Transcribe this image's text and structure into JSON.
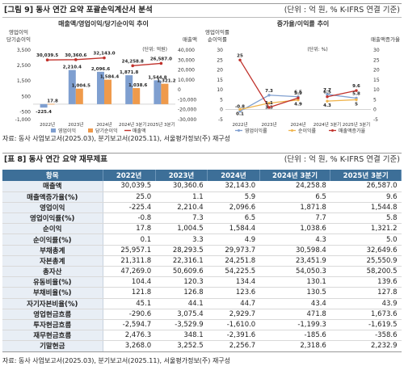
{
  "figure": {
    "title": "[그림 9] 동사 연간 요약 포괄손익계산서 분석",
    "unit": "(단위 : 억 원, % K-IFRS 연결 기준)"
  },
  "chart_data": [
    {
      "type": "bar",
      "title": "매출액/영업이익/당기순이익 추이",
      "categories": [
        "2022년",
        "2023년",
        "2024년",
        "2024년 3분기",
        "2025년 3분기"
      ],
      "series": [
        {
          "name": "영업이익",
          "values": [
            -225.4,
            2210.4,
            2096.6,
            1871.8,
            1544.8
          ],
          "color": "#7f9fd0"
        },
        {
          "name": "당기순이익",
          "values": [
            17.8,
            1004.5,
            1584.4,
            1038.6,
            1321.2
          ],
          "color": "#ef9a4b"
        },
        {
          "name": "매출액",
          "values": [
            30039.5,
            30360.6,
            32143.0,
            24258.8,
            26587.0
          ],
          "color": "#c0312b"
        }
      ],
      "data_labels": {
        "operating": [
          "-225.4",
          "2,210.4",
          "2,096.6",
          "1,871.8",
          "1,544.8"
        ],
        "net": [
          "17.8",
          "1,004.5",
          "1,584.4",
          "1,038.6",
          "1,321.2"
        ],
        "revenue": [
          "30,039.5",
          "30,360.6",
          "32,143.0",
          "24,258.8",
          "26,587.0"
        ]
      },
      "left_axis_title": "영업이익\n당기순이익",
      "right_axis_title": "매출액",
      "unit_label": "(단위: 억원)",
      "left_ylim": [
        -1000,
        3500
      ],
      "left_ticks": [
        "3,500",
        "2,500",
        "1,500",
        "500",
        "-500",
        "-1,000"
      ],
      "right_ylim": [
        -30000,
        40000
      ],
      "right_ticks": [
        "40,000",
        "30,000",
        "20,000",
        "10,000",
        "0",
        "-10,000",
        "-20,000",
        "-30,000"
      ]
    },
    {
      "type": "line",
      "title": "증가율/이익률 추이",
      "categories": [
        "2022년",
        "2023년",
        "2024년",
        "2024년 3분기",
        "2025년 3분기"
      ],
      "series": [
        {
          "name": "영업이익률",
          "values": [
            -0.8,
            7.3,
            6.5,
            7.7,
            5.8
          ],
          "color": "#7f9fd0"
        },
        {
          "name": "순이익률",
          "values": [
            0.1,
            3.3,
            4.9,
            4.3,
            5.0
          ],
          "color": "#f0b44c"
        },
        {
          "name": "매출액증가율",
          "values": [
            25.0,
            1.1,
            5.9,
            6.5,
            9.6
          ],
          "color": "#c0312b"
        }
      ],
      "left_axis_title": "영업이익률\n순이익률",
      "right_axis_title": "매출액증가율",
      "unit_label": "(단위: %)",
      "left_ylim": [
        -5,
        30
      ],
      "left_ticks": [
        "30",
        "25",
        "20",
        "15",
        "10",
        "5",
        "0",
        "-5"
      ],
      "right_ylim": [
        -5,
        30
      ],
      "right_ticks": [
        "30",
        "25",
        "20",
        "15",
        "10",
        "5",
        "0",
        "-5"
      ]
    }
  ],
  "figure_source": "자료: 동사 사업보고서(2025.03), 분기보고서(2025.11), 서울평가정보(주) 재구성",
  "table": {
    "title": "[표 8] 동사 연간 요약 재무제표",
    "unit": "(단위 : 억 원, % K-IFRS 연결 기준)",
    "headers": [
      "항목",
      "2022년",
      "2023년",
      "2024년",
      "2024년 3분기",
      "2025년 3분기"
    ],
    "rows": [
      [
        "매출액",
        "30,039.5",
        "30,360.6",
        "32,143.0",
        "24,258.8",
        "26,587.0"
      ],
      [
        "매출액증가율(%)",
        "25.0",
        "1.1",
        "5.9",
        "6.5",
        "9.6"
      ],
      [
        "영업이익",
        "-225.4",
        "2,210.4",
        "2,096.6",
        "1,871.8",
        "1,544.8"
      ],
      [
        "영업이익률(%)",
        "-0.8",
        "7.3",
        "6.5",
        "7.7",
        "5.8"
      ],
      [
        "순이익",
        "17.8",
        "1,004.5",
        "1,584.4",
        "1,038.6",
        "1,321.2"
      ],
      [
        "순이익률(%)",
        "0.1",
        "3.3",
        "4.9",
        "4.3",
        "5.0"
      ],
      [
        "부채총계",
        "25,957.1",
        "28,293.5",
        "29,973.7",
        "30,598.4",
        "32,649.6"
      ],
      [
        "자본총계",
        "21,311.8",
        "22,316.1",
        "24,251.8",
        "23,451.9",
        "25,550.9"
      ],
      [
        "총자산",
        "47,269.0",
        "50,609.6",
        "54,225.5",
        "54,050.3",
        "58,200.5"
      ],
      [
        "유동비율(%)",
        "104.4",
        "120.3",
        "134.4",
        "130.1",
        "139.6"
      ],
      [
        "부채비율(%)",
        "121.8",
        "126.8",
        "123.6",
        "130.5",
        "127.8"
      ],
      [
        "자기자본비율(%)",
        "45.1",
        "44.1",
        "44.7",
        "43.4",
        "43.9"
      ],
      [
        "영업현금흐름",
        "-290.6",
        "3,075.4",
        "2,929.7",
        "471.8",
        "1,673.6"
      ],
      [
        "투자현금흐름",
        "-2,594.7",
        "-3,529.9",
        "-1,610.0",
        "-1,199.3",
        "-1,619.5"
      ],
      [
        "재무현금흐름",
        "2,476.3",
        "348.1",
        "-2,391.6",
        "-185.6",
        "-358.6"
      ],
      [
        "기말현금",
        "3,268.0",
        "3,252.5",
        "2,256.7",
        "2,318.6",
        "2,232.9"
      ]
    ]
  },
  "table_source": "자료: 동사 사업보고서(2025.03), 분기보고서(2025.11), 서울평가정보(주) 재구성"
}
